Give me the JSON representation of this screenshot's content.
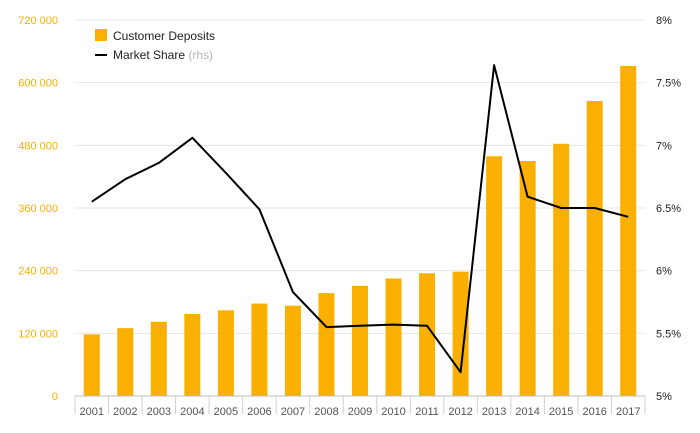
{
  "chart_data": {
    "type": "bar+line",
    "x": [
      "2001",
      "2002",
      "2003",
      "2004",
      "2005",
      "2006",
      "2007",
      "2008",
      "2009",
      "2010",
      "2011",
      "2012",
      "2013",
      "2014",
      "2015",
      "2016",
      "2017"
    ],
    "series": [
      {
        "name": "Customer Deposits",
        "type": "bar",
        "axis": "left",
        "color": "#F9B000",
        "values": [
          118000,
          130000,
          142000,
          157000,
          164000,
          177000,
          173000,
          197000,
          211000,
          225000,
          235000,
          238000,
          459000,
          450000,
          483000,
          565000,
          632000
        ]
      },
      {
        "name": "Market Share",
        "name_suffix": "(rhs)",
        "type": "line",
        "axis": "right",
        "color": "#000000",
        "values": [
          6.55,
          6.73,
          6.86,
          7.06,
          6.78,
          6.49,
          5.83,
          5.55,
          5.56,
          5.57,
          5.56,
          5.19,
          7.64,
          6.59,
          6.5,
          6.5,
          6.43
        ]
      }
    ],
    "left_axis": {
      "min": 0,
      "max": 720000,
      "ticks": [
        0,
        120000,
        240000,
        360000,
        480000,
        600000,
        720000
      ],
      "tick_labels": [
        "0",
        "120 000",
        "240 000",
        "360 000",
        "480 000",
        "600 000",
        "720 000"
      ],
      "color": "#F9B000"
    },
    "right_axis": {
      "min": 5,
      "max": 8,
      "ticks": [
        5,
        5.5,
        6,
        6.5,
        7,
        7.5,
        8
      ],
      "tick_labels": [
        "5%",
        "5.5%",
        "6%",
        "6.5%",
        "7%",
        "7.5%",
        "8%"
      ]
    },
    "grid": true,
    "legend_position": "top-left",
    "title": "",
    "xlabel": "",
    "ylabel": ""
  }
}
